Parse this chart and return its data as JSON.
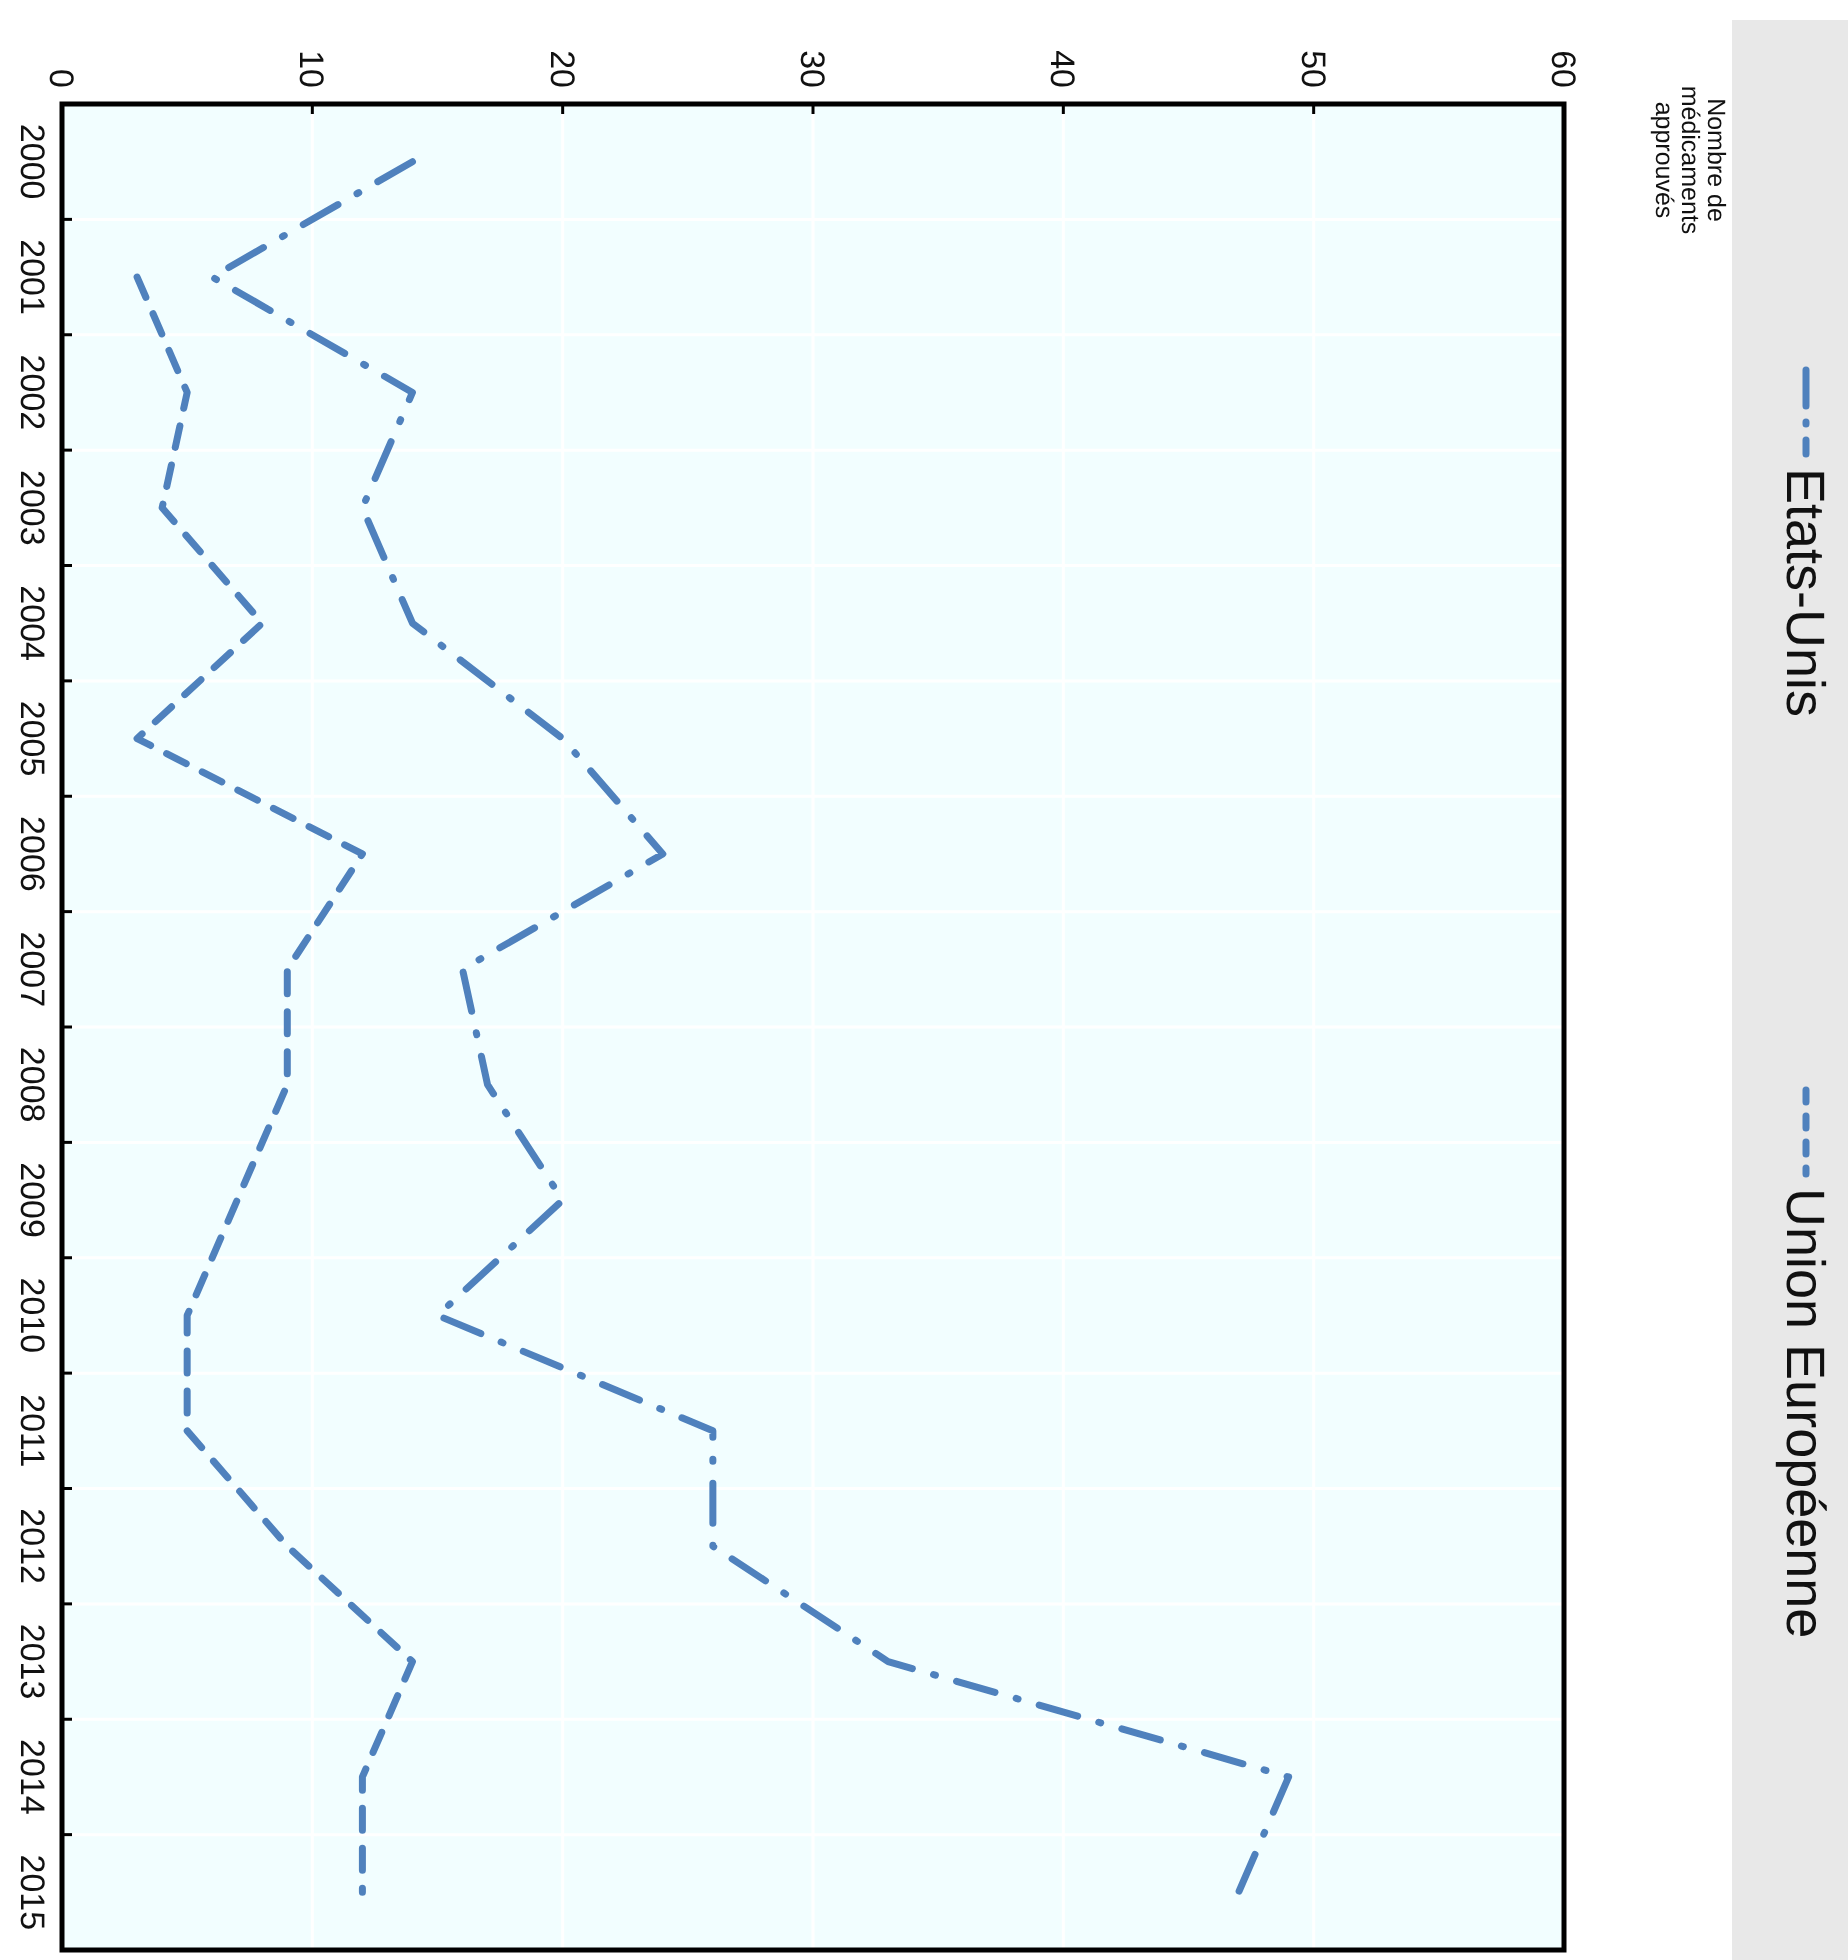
{
  "chart_data": {
    "type": "line",
    "orientation": "horizontal",
    "annotations": [
      "Nombre de médicaments approuvés"
    ],
    "categories": [
      "2000",
      "2001",
      "2002",
      "2003",
      "2004",
      "2005",
      "2006",
      "2007",
      "2008",
      "2009",
      "2010",
      "2011",
      "2012",
      "2013",
      "2014",
      "2015"
    ],
    "series": [
      {
        "name": "Etats-Unis",
        "color": "#4f81bd",
        "line_style": "dashdot",
        "values": [
          14,
          6,
          14,
          12,
          14,
          20,
          24,
          16,
          17,
          20,
          15,
          26,
          26,
          33,
          49,
          47
        ]
      },
      {
        "name": "Union Européenne",
        "color": "#4f81bd",
        "line_style": "dashed",
        "values": [
          null,
          3,
          5,
          4,
          8,
          3,
          12,
          9,
          9,
          7,
          5,
          5,
          9,
          14,
          12,
          12
        ]
      }
    ],
    "xlim": [
      0,
      60
    ],
    "xticks": [
      0,
      10,
      20,
      30,
      40,
      50,
      60
    ],
    "grid": true,
    "legend": "right",
    "marker": "none"
  }
}
